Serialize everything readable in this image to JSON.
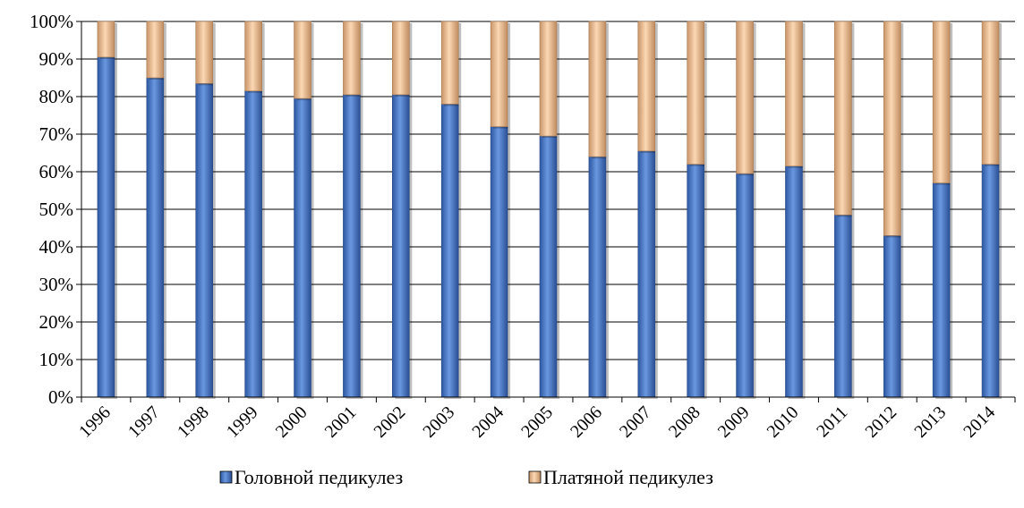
{
  "chart_data": {
    "type": "bar",
    "stacked": true,
    "percent_stacked": true,
    "categories": [
      "1996",
      "1997",
      "1998",
      "1999",
      "2000",
      "2001",
      "2002",
      "2003",
      "2004",
      "2005",
      "2006",
      "2007",
      "2008",
      "2009",
      "2010",
      "2011",
      "2012",
      "2013",
      "2014"
    ],
    "series": [
      {
        "name": "Головной педикулез",
        "color": "#4a7ac8",
        "values": [
          90.5,
          85,
          83.5,
          81.5,
          79.5,
          80.5,
          80.5,
          78,
          72,
          69.5,
          64,
          65.5,
          62,
          59.5,
          61.5,
          48.5,
          43,
          57,
          62
        ]
      },
      {
        "name": "Платяной педикулез",
        "color": "#f2c49a",
        "values": [
          9.5,
          15,
          16.5,
          18.5,
          20.5,
          19.5,
          19.5,
          22,
          28,
          30.5,
          36,
          34.5,
          38,
          40.5,
          38.5,
          51.5,
          57,
          43,
          38
        ]
      }
    ],
    "ylim": [
      0,
      100
    ],
    "yticks": [
      "0%",
      "10%",
      "20%",
      "30%",
      "40%",
      "50%",
      "60%",
      "70%",
      "80%",
      "90%",
      "100%"
    ],
    "grid": true,
    "legend_position": "bottom",
    "title": "",
    "xlabel": "",
    "ylabel": ""
  }
}
